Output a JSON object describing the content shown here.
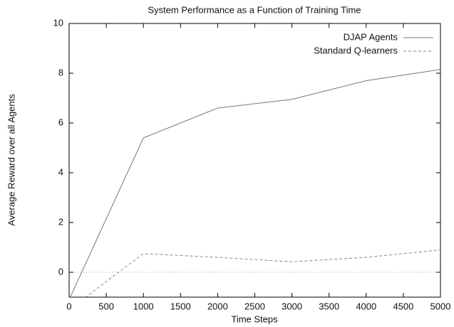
{
  "chart_data": {
    "type": "line",
    "title": "System Performance as a Function of Training Time",
    "xlabel": "Time Steps",
    "ylabel": "Average Reward over all Agents",
    "x": [
      0,
      1000,
      2000,
      3000,
      4000,
      5000
    ],
    "series": [
      {
        "name": "DJAP Agents",
        "color": "#777777",
        "dash": "solid",
        "values": [
          -1.1,
          5.4,
          6.6,
          6.95,
          7.7,
          8.15
        ]
      },
      {
        "name": "Standard Q-learners",
        "color": "#888888",
        "dash": "dashed",
        "values": [
          -1.5,
          0.75,
          0.6,
          0.42,
          0.6,
          0.9
        ]
      }
    ],
    "xlim": [
      0,
      5000
    ],
    "xticks": [
      0,
      500,
      1000,
      1500,
      2000,
      2500,
      3000,
      3500,
      4000,
      4500,
      5000
    ],
    "ylim": [
      -1,
      10
    ],
    "yticks": [
      0,
      2,
      4,
      6,
      8,
      10
    ],
    "zero_axis": true,
    "legend": "top-right",
    "grid": false
  }
}
